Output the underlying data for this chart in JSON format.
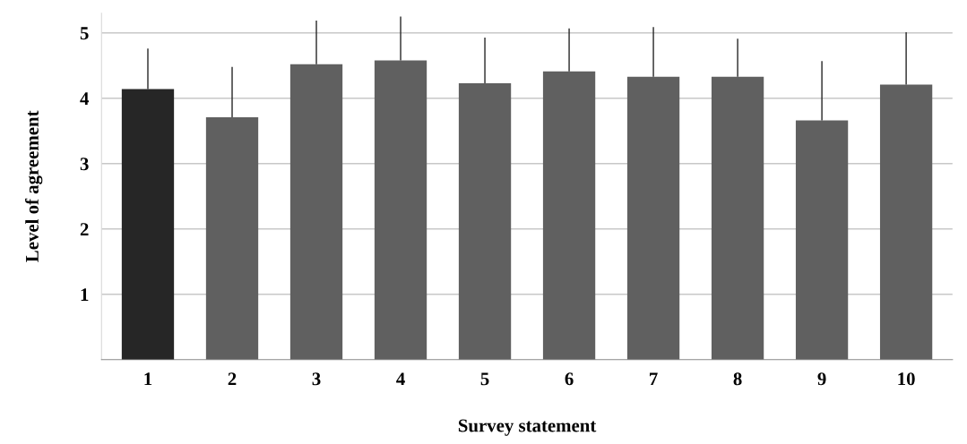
{
  "chart_data": {
    "type": "bar",
    "xlabel": "Survey statement",
    "ylabel": "Level of agreement",
    "categories": [
      "1",
      "2",
      "3",
      "4",
      "5",
      "6",
      "7",
      "8",
      "9",
      "10"
    ],
    "values": [
      4.14,
      3.71,
      4.52,
      4.58,
      4.23,
      4.41,
      4.33,
      4.33,
      3.66,
      4.21
    ],
    "errors": [
      [
        4.14,
        4.76
      ],
      [
        3.71,
        4.48
      ],
      [
        4.52,
        5.19
      ],
      [
        4.58,
        5.25
      ],
      [
        4.23,
        4.93
      ],
      [
        4.41,
        5.07
      ],
      [
        4.33,
        5.09
      ],
      [
        4.33,
        4.91
      ],
      [
        3.66,
        4.57
      ],
      [
        4.21,
        5.01
      ]
    ],
    "colors": [
      "#262626",
      "#606060",
      "#606060",
      "#606060",
      "#606060",
      "#606060",
      "#606060",
      "#606060",
      "#606060",
      "#606060"
    ],
    "ylim": [
      0,
      5.3
    ],
    "yticks": [
      1,
      2,
      3,
      4,
      5
    ],
    "grid": "y"
  }
}
